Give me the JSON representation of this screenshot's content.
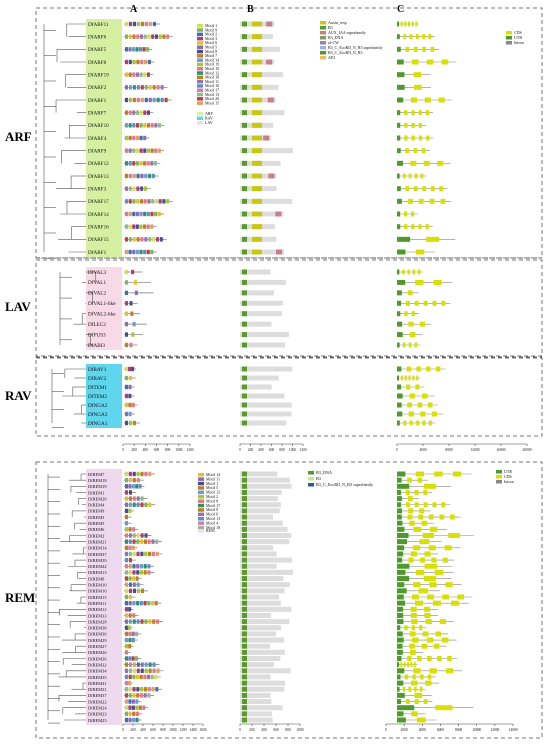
{
  "figure": {
    "column_headers": [
      "A",
      "B",
      "C"
    ],
    "families": [
      {
        "name": "ARF",
        "color": "#d6f0a2",
        "genes": [
          "DfARF11",
          "DfARF6",
          "DfARF5",
          "DfARF8",
          "DfARF19",
          "DfARF2",
          "DfARF1",
          "DfARF7",
          "DfARF10",
          "DfARF4",
          "DfARF9",
          "DfARF12",
          "DfARF13",
          "DfARF3",
          "DfARF17",
          "DfARF14",
          "DfARF16",
          "DfARF15",
          "DfARF1"
        ]
      },
      {
        "name": "LAV",
        "color": "#f8d9e6",
        "genes": [
          "DfVAL3",
          "DfVAL1",
          "DfVAL2",
          "DfVAL1-like",
          "DfVAL2-like",
          "DfLEC2",
          "DfFUS3",
          "DfABI3"
        ]
      },
      {
        "name": "RAV",
        "color": "#5fd6ee",
        "genes": [
          "DfRAV1",
          "DfRAV2",
          "DfTEM1",
          "DfTEM2",
          "DfNGA2",
          "DfNGA3",
          "DfNGA1"
        ]
      },
      {
        "name": "REM",
        "color": "#efd9ef",
        "genes": [
          "DfREM7",
          "DfREM18",
          "DfREM19",
          "DfREM1",
          "DfREM20",
          "DfREM4",
          "DfREM9",
          "DfREM3",
          "DfREM5",
          "DfREM6",
          "DfREM2",
          "DfREM21",
          "DfREM14",
          "DfREM37",
          "DfREM39",
          "DfREM42",
          "DfREM13",
          "DfREM8",
          "DfREM10",
          "DfREM16",
          "DfREM15",
          "DfREM11",
          "DfREM12",
          "DfREM33",
          "DfREM28",
          "DfREM38",
          "DfREM30",
          "DfREM29",
          "DfREM27",
          "DfREM26",
          "DfREM36",
          "DfREM32",
          "DfREM34",
          "DfREM35",
          "DfREM41",
          "DfREM31",
          "DfREM37",
          "DfREM22",
          "DfREM24",
          "DfREM23",
          "DfREM25"
        ]
      }
    ],
    "motif_legend_top": [
      "Motif 1",
      "Motif 9",
      "Motif 2",
      "Motif 3",
      "Motif 6",
      "Motif 5",
      "Motif 8",
      "Motif 7",
      "Motif 14",
      "Motif 19",
      "Motif 10",
      "Motif 12",
      "Motif 18",
      "Motif 11",
      "Motif 16",
      "Motif 17",
      "Motif 13",
      "Motif 20",
      "Motif 15"
    ],
    "family_legend_top": [
      "ARF",
      "RAV",
      "LAV"
    ],
    "domain_legend_top": [
      "Auxin_resp",
      "B3",
      "AUX_IAA superfamily",
      "B3_DNA",
      "zf-CW",
      "B3_C_EcoRII_N_B3 superfamily",
      "B3_C_EcoRII_N_B3",
      "AP2"
    ],
    "structure_legend_top": [
      "CDS",
      "UTR",
      "Intron"
    ],
    "axis_A_top": [
      "0",
      "200",
      "400",
      "600",
      "800",
      "1000",
      "1200"
    ],
    "axis_B_top": [
      "0",
      "200",
      "400",
      "600",
      "800",
      "1000",
      "1200"
    ],
    "axis_C_top": [
      "0",
      "4000",
      "8000",
      "12000",
      "16000",
      "20000"
    ],
    "motif_legend_rem": [
      "Motif 14",
      "Motif 11",
      "Motif 1",
      "Motif 5",
      "Motif 12",
      "Motif 2",
      "Motif 8",
      "Motif 17",
      "Motif 9",
      "Motif 6",
      "Motif 13",
      "Motif 4",
      "Motif 18"
    ],
    "family_legend_rem": [
      "REM"
    ],
    "domain_legend_rem": [
      "B3_DNA",
      "B3",
      "B3_C_EcoRII_N_B3 superfamily"
    ],
    "structure_legend_rem": [
      "UTR",
      "CDS",
      "Intron"
    ],
    "axis_A_rem": [
      "0",
      "200",
      "400",
      "600",
      "800",
      "1000",
      "1200",
      "1400",
      "1600"
    ],
    "axis_B_rem": [
      "0",
      "200",
      "400",
      "600",
      "800",
      "1000"
    ],
    "axis_C_rem": [
      "0",
      "2000",
      "4000",
      "6000",
      "8000",
      "10000",
      "12000",
      "14000"
    ],
    "colors": {
      "motifs": [
        "#d4e34a",
        "#7bb661",
        "#3f6fb0",
        "#b03a7a",
        "#e3c12b",
        "#8e6bb3",
        "#4b4b8f",
        "#c57a2b",
        "#6f9bd1",
        "#a4c639",
        "#e37b7b",
        "#2f8f6f",
        "#b8860b",
        "#9c6fb3",
        "#5b8fd1",
        "#d97aa5",
        "#8fbc8f",
        "#c04040",
        "#e0a060"
      ],
      "b3": "#5a9a2b",
      "auxin": "#c8c810",
      "auxiaa": "#c87d8a",
      "cds": "#d8e000",
      "utr": "#4f9a2a",
      "intron": "#888888",
      "bar_bg": "#dddddd"
    }
  }
}
